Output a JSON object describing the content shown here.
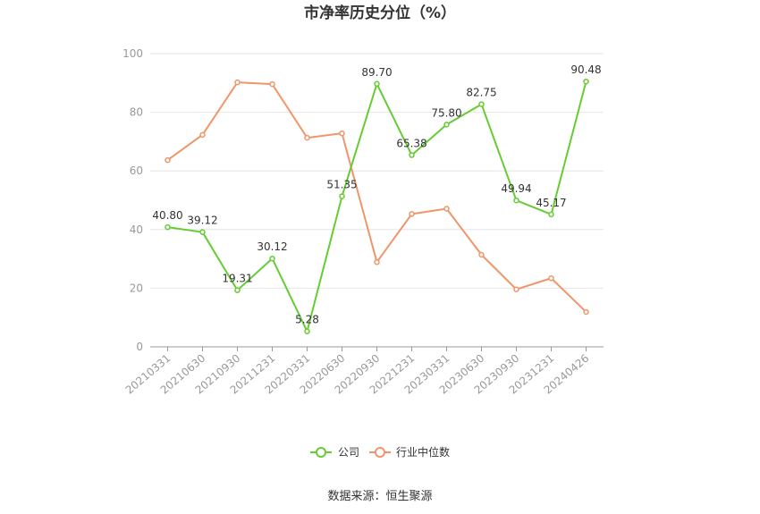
{
  "chart_data": {
    "type": "line",
    "title": "市净率历史分位（%）",
    "xlabel": "",
    "ylabel": "",
    "ylim": [
      0,
      100
    ],
    "yticks": [
      0,
      20,
      40,
      60,
      80,
      100
    ],
    "grid": true,
    "legend_position": "bottom",
    "categories": [
      "20210331",
      "20210630",
      "20210930",
      "20211231",
      "20220331",
      "20220630",
      "20220930",
      "20221231",
      "20230331",
      "20230630",
      "20230930",
      "20231231",
      "20240426"
    ],
    "series": [
      {
        "name": "公司",
        "color": "#66cc33",
        "values": [
          40.8,
          39.12,
          19.31,
          30.12,
          5.28,
          51.35,
          89.7,
          65.38,
          75.8,
          82.75,
          49.94,
          45.17,
          90.48
        ],
        "labels": [
          "40.80",
          "39.12",
          "19.31",
          "30.12",
          "5.28",
          "51.35",
          "89.70",
          "65.38",
          "75.80",
          "82.75",
          "49.94",
          "45.17",
          "90.48"
        ]
      },
      {
        "name": "行业中位数",
        "color": "#f0956a",
        "values": [
          63.7,
          72.3,
          90.2,
          89.6,
          71.3,
          72.8,
          28.9,
          45.3,
          47.1,
          31.4,
          19.6,
          23.4,
          11.9
        ]
      }
    ],
    "source": "数据来源：恒生聚源"
  }
}
